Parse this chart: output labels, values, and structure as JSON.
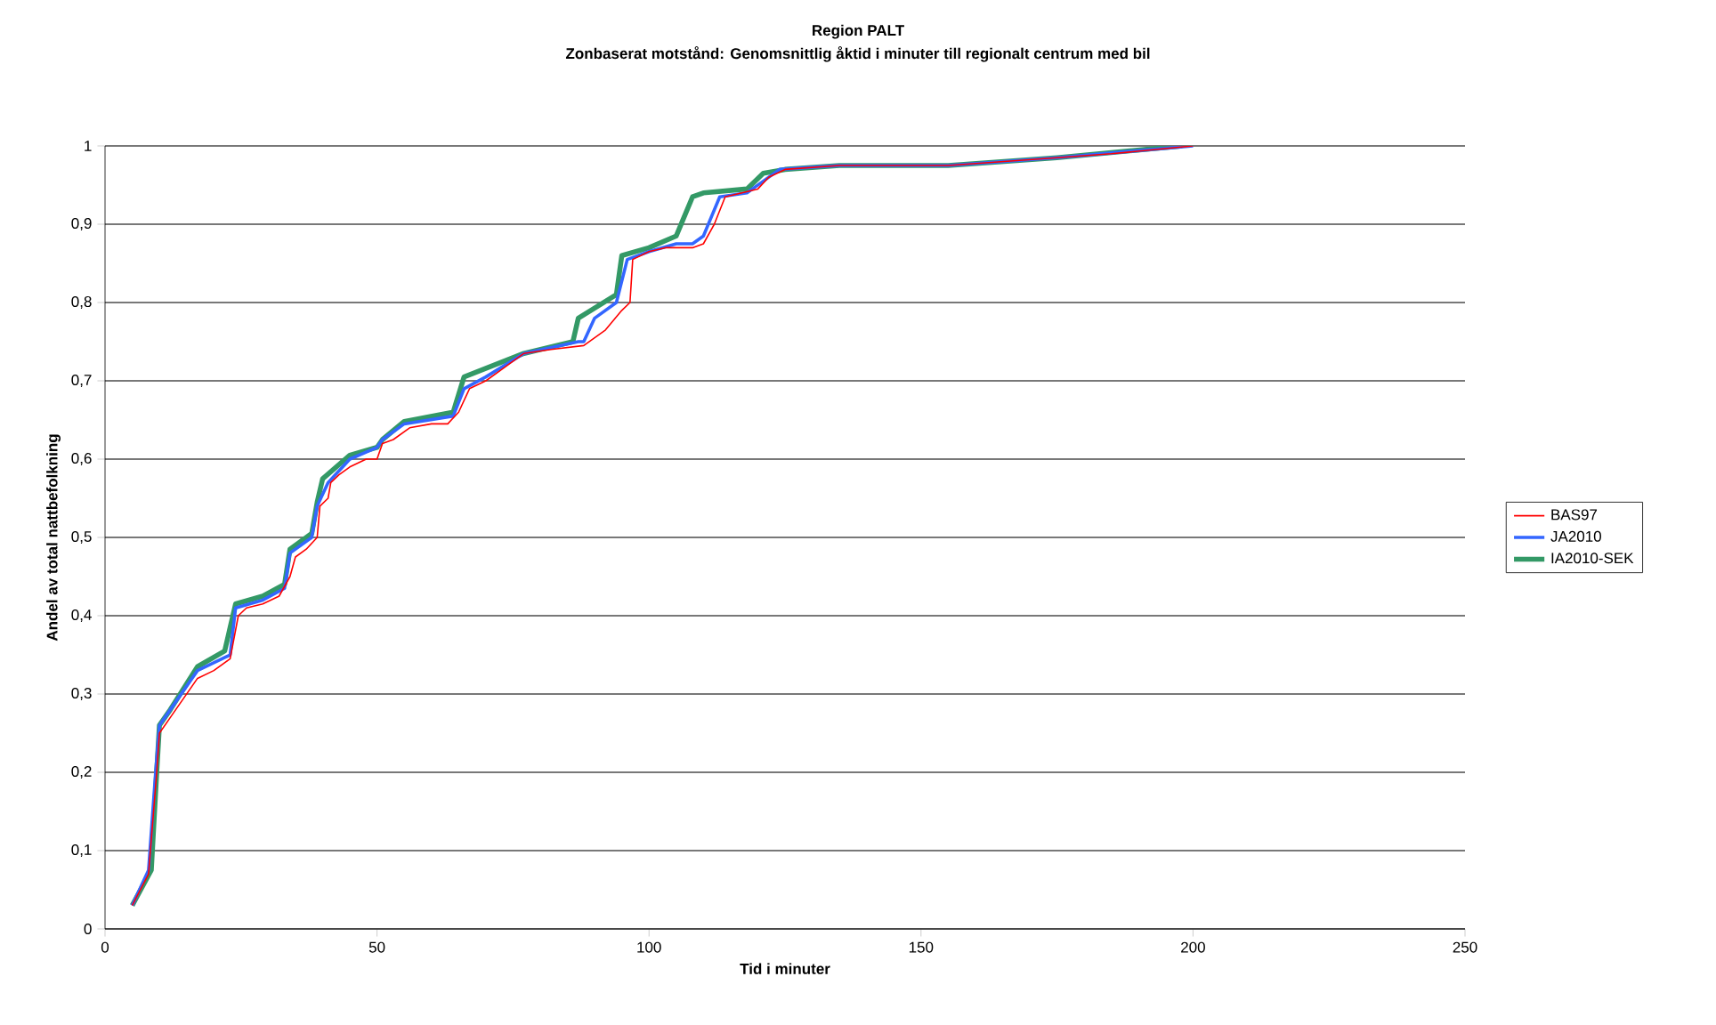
{
  "chart_data": {
    "type": "line",
    "title": "Region PALT",
    "subtitle": "Zonbaserat motstånd: Genomsnittlig åktid i minuter till regionalt centrum med bil",
    "xlabel": "Tid i minuter",
    "ylabel": "Andel av total nattbefolkning",
    "xlim": [
      0,
      250
    ],
    "xticks": [
      0,
      50,
      100,
      150,
      200,
      250
    ],
    "ylim": [
      0,
      1
    ],
    "yticks": [
      0,
      {
        "value": 0.1,
        "label": "0,1"
      },
      {
        "value": 0.2,
        "label": "0,2"
      },
      {
        "value": 0.3,
        "label": "0,3"
      },
      {
        "value": 0.4,
        "label": "0,4"
      },
      {
        "value": 0.5,
        "label": "0,5"
      },
      {
        "value": 0.6,
        "label": "0,6"
      },
      {
        "value": 0.7,
        "label": "0,7"
      },
      {
        "value": 0.8,
        "label": "0,8"
      },
      {
        "value": 0.9,
        "label": "0,9"
      },
      1
    ],
    "grid": "y",
    "legend": "right",
    "marker": "none",
    "line_style": "solid",
    "series": [
      {
        "name": "BAS97",
        "color": "#ff0000",
        "x": [
          5,
          8,
          9.5,
          10,
          12,
          17,
          20,
          23,
          24.5,
          26,
          29,
          32,
          34,
          35,
          37,
          39,
          39.5,
          41,
          41.5,
          43,
          45,
          48,
          50,
          51,
          53,
          56,
          60,
          63,
          65,
          67,
          70,
          73,
          77,
          82,
          88,
          92,
          95,
          96.5,
          97,
          100,
          103,
          108,
          110,
          112,
          114,
          117,
          120,
          122,
          125,
          135,
          155,
          175,
          185,
          200
        ],
        "values": [
          0.03,
          0.07,
          0.2,
          0.25,
          0.27,
          0.32,
          0.33,
          0.345,
          0.4,
          0.41,
          0.415,
          0.425,
          0.45,
          0.475,
          0.485,
          0.5,
          0.54,
          0.55,
          0.57,
          0.58,
          0.59,
          0.6,
          0.6,
          0.62,
          0.625,
          0.64,
          0.645,
          0.645,
          0.66,
          0.69,
          0.7,
          0.715,
          0.735,
          0.74,
          0.745,
          0.765,
          0.79,
          0.8,
          0.855,
          0.865,
          0.87,
          0.87,
          0.875,
          0.9,
          0.935,
          0.94,
          0.945,
          0.96,
          0.97,
          0.975,
          0.975,
          0.985,
          0.99,
          1.0
        ]
      },
      {
        "name": "JA2010",
        "color": "#3366ff",
        "x": [
          5,
          8,
          9.3,
          10,
          12,
          17,
          23,
          24,
          29,
          33,
          34,
          38,
          39,
          41,
          45,
          50,
          51,
          55,
          64,
          66,
          70,
          77,
          87,
          88,
          90,
          94,
          96,
          100,
          105,
          108,
          110,
          113,
          118,
          121,
          124,
          135,
          155,
          175,
          200
        ],
        "values": [
          0.03,
          0.075,
          0.2,
          0.26,
          0.28,
          0.33,
          0.35,
          0.41,
          0.42,
          0.435,
          0.48,
          0.5,
          0.54,
          0.57,
          0.6,
          0.615,
          0.625,
          0.645,
          0.655,
          0.69,
          0.705,
          0.735,
          0.75,
          0.75,
          0.78,
          0.8,
          0.855,
          0.865,
          0.875,
          0.875,
          0.885,
          0.935,
          0.94,
          0.955,
          0.97,
          0.975,
          0.975,
          0.985,
          1.0
        ]
      },
      {
        "name": "IA2010-SEK",
        "color": "#339966",
        "x": [
          5,
          8.5,
          9.5,
          10,
          12,
          17,
          22,
          24,
          29,
          33,
          34,
          38,
          39,
          40,
          45,
          50,
          51,
          55,
          64,
          66,
          77,
          86,
          87,
          94,
          95,
          100,
          105,
          108,
          110,
          118,
          121,
          125,
          135,
          155,
          175,
          198
        ],
        "values": [
          0.03,
          0.075,
          0.2,
          0.26,
          0.28,
          0.335,
          0.355,
          0.415,
          0.425,
          0.44,
          0.485,
          0.505,
          0.545,
          0.575,
          0.605,
          0.615,
          0.625,
          0.648,
          0.66,
          0.705,
          0.735,
          0.75,
          0.78,
          0.81,
          0.86,
          0.87,
          0.885,
          0.935,
          0.94,
          0.945,
          0.965,
          0.97,
          0.975,
          0.975,
          0.985,
          1.0
        ]
      }
    ]
  }
}
